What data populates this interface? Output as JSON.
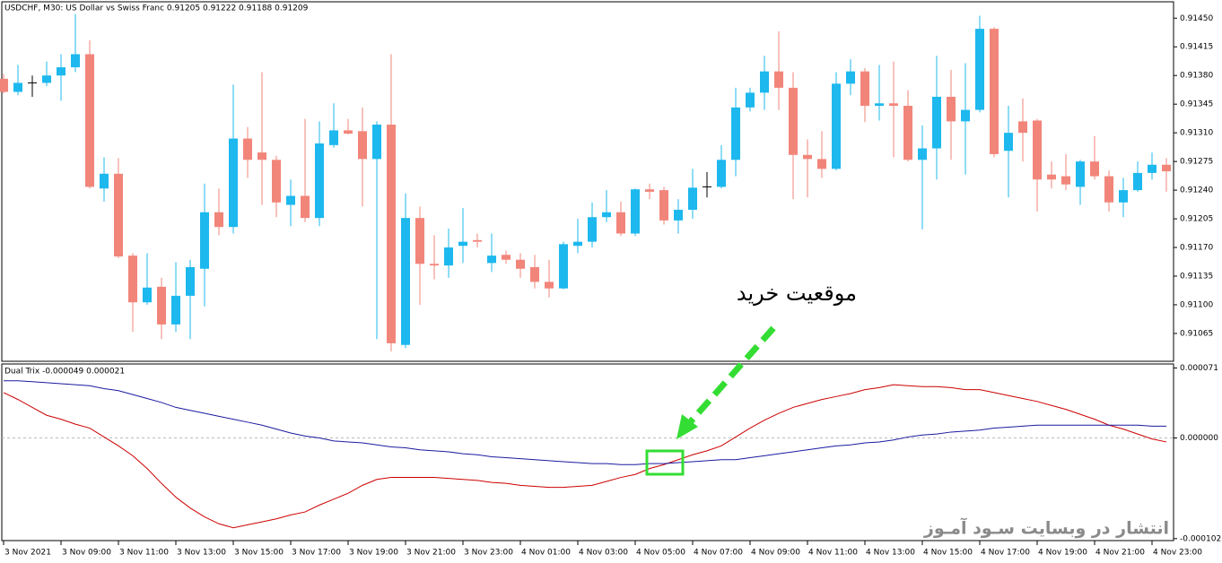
{
  "chart_data": [
    {
      "type": "candlestick",
      "title": "USDCHF, M30:  US Dollar vs Swiss Franc  0.91205 0.91222 0.91188 0.91209",
      "categories": [
        "3 Nov 2021",
        null,
        null,
        null,
        "3 Nov 09:00",
        null,
        null,
        null,
        "3 Nov 11:00",
        null,
        null,
        null,
        "3 Nov 13:00",
        null,
        null,
        null,
        "3 Nov 15:00",
        null,
        null,
        null,
        "3 Nov 17:00",
        null,
        null,
        null,
        "3 Nov 19:00",
        null,
        null,
        null,
        "3 Nov 21:00",
        null,
        null,
        null,
        "3 Nov 23:00",
        null,
        null,
        null,
        "4 Nov 01:00",
        null,
        null,
        null,
        "4 Nov 03:00",
        null,
        null,
        null,
        "4 Nov 05:00",
        null,
        null,
        null,
        "4 Nov 07:00",
        null,
        null,
        null,
        "4 Nov 09:00",
        null,
        null,
        null,
        "4 Nov 11:00",
        null,
        null,
        null,
        "4 Nov 13:00",
        null,
        null,
        null,
        "4 Nov 15:00",
        null,
        null,
        null,
        "4 Nov 17:00",
        null,
        null,
        null,
        "4 Nov 19:00",
        null,
        null,
        null,
        "4 Nov 21:00",
        null,
        null,
        null,
        "4 Nov 23:00",
        null
      ],
      "open": [
        0.91376,
        0.9136,
        0.91371,
        0.91371,
        0.9138,
        0.9139,
        0.91406,
        0.91242,
        0.9126,
        0.9116,
        0.91103,
        0.91122,
        0.91076,
        0.91111,
        0.91144,
        0.91213,
        0.91195,
        0.91303,
        0.91286,
        0.91277,
        0.91222,
        0.91233,
        0.91206,
        0.91295,
        0.91313,
        0.91312,
        0.91278,
        0.9132,
        0.91051,
        0.91206,
        0.9115,
        0.91148,
        0.91172,
        0.91179,
        0.91151,
        0.91161,
        0.91155,
        0.91146,
        0.91128,
        0.9112,
        0.91172,
        0.91177,
        0.91207,
        0.91213,
        0.91187,
        0.91241,
        0.9124,
        0.91203,
        0.91216,
        0.91244,
        0.91244,
        0.91277,
        0.91341,
        0.91359,
        0.91385,
        0.91365,
        0.91283,
        0.91278,
        0.91266,
        0.9137,
        0.91385,
        0.91343,
        0.91346,
        0.91343,
        0.91277,
        0.91291,
        0.91354,
        0.91324,
        0.91338,
        0.91437,
        0.91288,
        0.91324,
        0.91325,
        0.91259,
        0.91257,
        0.91244,
        0.91275,
        0.91257,
        0.91225,
        0.9124,
        0.91261,
        0.91271
      ],
      "high": [
        0.91382,
        0.91393,
        0.9138,
        0.91397,
        0.91406,
        0.91455,
        0.91423,
        0.9128,
        0.91279,
        0.91163,
        0.91163,
        0.91133,
        0.91152,
        0.91155,
        0.91248,
        0.91242,
        0.91369,
        0.91317,
        0.91384,
        0.91282,
        0.91253,
        0.91327,
        0.91324,
        0.91346,
        0.91327,
        0.91341,
        0.91324,
        0.91406,
        0.91236,
        0.9122,
        0.91185,
        0.91193,
        0.91218,
        0.91187,
        0.91187,
        0.91166,
        0.91163,
        0.91161,
        0.91155,
        0.91177,
        0.91205,
        0.91225,
        0.9124,
        0.91226,
        0.91242,
        0.91248,
        0.91244,
        0.91229,
        0.91266,
        0.91262,
        0.91295,
        0.91365,
        0.91365,
        0.91404,
        0.91434,
        0.91384,
        0.91302,
        0.91312,
        0.91384,
        0.914,
        0.91389,
        0.91393,
        0.91397,
        0.91362,
        0.91319,
        0.91404,
        0.91387,
        0.91395,
        0.91453,
        0.91439,
        0.91343,
        0.91352,
        0.91327,
        0.91275,
        0.91284,
        0.91277,
        0.91306,
        0.91264,
        0.91255,
        0.91275,
        0.91286,
        0.91279
      ],
      "low": [
        0.91358,
        0.91356,
        0.91354,
        0.91367,
        0.91349,
        0.91384,
        0.91242,
        0.91226,
        0.91157,
        0.91067,
        0.911,
        0.91058,
        0.91067,
        0.91058,
        0.91098,
        0.91185,
        0.91187,
        0.91255,
        0.91222,
        0.91207,
        0.91196,
        0.91201,
        0.91196,
        0.91292,
        0.91308,
        0.9122,
        0.91058,
        0.91043,
        0.91047,
        0.911,
        0.91131,
        0.91133,
        0.91151,
        0.9117,
        0.9114,
        0.9115,
        0.91133,
        0.9112,
        0.91109,
        0.91119,
        0.91163,
        0.9117,
        0.91201,
        0.91184,
        0.91184,
        0.91229,
        0.91198,
        0.91187,
        0.91205,
        0.91231,
        0.91242,
        0.91257,
        0.91336,
        0.91338,
        0.91338,
        0.91229,
        0.91231,
        0.91255,
        0.91264,
        0.91356,
        0.91323,
        0.91325,
        0.9128,
        0.91275,
        0.91192,
        0.91253,
        0.91277,
        0.91259,
        0.91335,
        0.9128,
        0.91231,
        0.91275,
        0.91214,
        0.91242,
        0.9124,
        0.91222,
        0.91253,
        0.91214,
        0.91207,
        0.91238,
        0.91253,
        0.91238
      ],
      "close": [
        0.9136,
        0.91371,
        0.91371,
        0.9138,
        0.9139,
        0.91406,
        0.91244,
        0.9126,
        0.91159,
        0.91103,
        0.91121,
        0.91076,
        0.91111,
        0.91146,
        0.91213,
        0.91195,
        0.91303,
        0.91277,
        0.91277,
        0.91225,
        0.91233,
        0.91206,
        0.91297,
        0.91313,
        0.91309,
        0.91278,
        0.9132,
        0.91053,
        0.91206,
        0.9115,
        0.91148,
        0.9117,
        0.91177,
        0.91177,
        0.9116,
        0.91155,
        0.91144,
        0.91128,
        0.9112,
        0.91174,
        0.91177,
        0.91207,
        0.91213,
        0.91187,
        0.91241,
        0.91238,
        0.91203,
        0.91216,
        0.91243,
        0.91244,
        0.91277,
        0.91341,
        0.91359,
        0.91385,
        0.91365,
        0.91283,
        0.91278,
        0.91266,
        0.9137,
        0.91385,
        0.91343,
        0.91346,
        0.91343,
        0.91277,
        0.91291,
        0.91354,
        0.91324,
        0.91338,
        0.91437,
        0.91284,
        0.9131,
        0.9131,
        0.91253,
        0.91253,
        0.91247,
        0.91275,
        0.91257,
        0.91225,
        0.9124,
        0.91261,
        0.91271,
        0.91263
      ],
      "up_color": "#1db8ee",
      "down_color": "#f2857a",
      "doji_color": "#000000",
      "ylim": [
        0.91031,
        0.9147
      ],
      "yticks": [
        {
          "value": 0.9145,
          "label": "0.91450"
        },
        {
          "value": 0.91415,
          "label": "0.91415"
        },
        {
          "value": 0.9138,
          "label": "0.91380"
        },
        {
          "value": 0.91345,
          "label": "0.91345"
        },
        {
          "value": 0.9131,
          "label": "0.91310"
        },
        {
          "value": 0.91275,
          "label": "0.91275"
        },
        {
          "value": 0.9124,
          "label": "0.91240"
        },
        {
          "value": 0.91205,
          "label": "0.91205"
        },
        {
          "value": 0.9117,
          "label": "0.91170"
        },
        {
          "value": 0.91135,
          "label": "0.91135"
        },
        {
          "value": 0.911,
          "label": "0.91100"
        },
        {
          "value": 0.91065,
          "label": "0.91065"
        }
      ],
      "annotations": [
        "موقعیت خرید"
      ]
    },
    {
      "type": "line",
      "title": "Dual Trix -0.000049 0.000021",
      "series": [
        {
          "color": "#cc0000",
          "values": [
            4.6e-05,
            3.9e-05,
            3.1e-05,
            2.3e-05,
            1.9e-05,
            1.4e-05,
            1e-05,
            1e-06,
            -8e-06,
            -1.8e-05,
            -3.1e-05,
            -4.6e-05,
            -6e-05,
            -7.1e-05,
            -8e-05,
            -8.7e-05,
            -9.1e-05,
            -8.8e-05,
            -8.5e-05,
            -8.2e-05,
            -7.8e-05,
            -7.5e-05,
            -6.8e-05,
            -6.2e-05,
            -5.6e-05,
            -4.8e-05,
            -4.2e-05,
            -4e-05,
            -4e-05,
            -4e-05,
            -4e-05,
            -4.1e-05,
            -4.2e-05,
            -4.3e-05,
            -4.5e-05,
            -4.6e-05,
            -4.8e-05,
            -4.9e-05,
            -5e-05,
            -5e-05,
            -4.9e-05,
            -4.8e-05,
            -4.4e-05,
            -4e-05,
            -3.7e-05,
            -3.1e-05,
            -2.7e-05,
            -2.2e-05,
            -1.7e-05,
            -1.3e-05,
            -8e-06,
            1e-06,
            1e-05,
            1.8e-05,
            2.5e-05,
            3.1e-05,
            3.5e-05,
            3.9e-05,
            4.2e-05,
            4.5e-05,
            4.9e-05,
            5.1e-05,
            5.4e-05,
            5.3e-05,
            5.2e-05,
            5.2e-05,
            5.1e-05,
            4.9e-05,
            4.9e-05,
            4.6e-05,
            4.3e-05,
            4e-05,
            3.7e-05,
            3.3e-05,
            2.9e-05,
            2.4e-05,
            1.9e-05,
            1.3e-05,
            9e-06,
            4e-06,
            -1e-06,
            -4e-06
          ]
        },
        {
          "color": "#1a1aa0",
          "values": [
            5.8e-05,
            5.8e-05,
            5.7e-05,
            5.6e-05,
            5.5e-05,
            5.4e-05,
            5.3e-05,
            5e-05,
            4.8e-05,
            4.4e-05,
            4e-05,
            3.6e-05,
            3.1e-05,
            2.8e-05,
            2.5e-05,
            2.2e-05,
            1.9e-05,
            1.6e-05,
            1.3e-05,
            9e-06,
            5e-06,
            2e-06,
            0,
            -3e-06,
            -4e-06,
            -5e-06,
            -7e-06,
            -9e-06,
            -1e-05,
            -1.2e-05,
            -1.3e-05,
            -1.4e-05,
            -1.6e-05,
            -1.7e-05,
            -1.9e-05,
            -2e-05,
            -2.1e-05,
            -2.2e-05,
            -2.3e-05,
            -2.4e-05,
            -2.5e-05,
            -2.6e-05,
            -2.6e-05,
            -2.7e-05,
            -2.7e-05,
            -2.6e-05,
            -2.6e-05,
            -2.5e-05,
            -2.4e-05,
            -2.3e-05,
            -2.2e-05,
            -2.2e-05,
            -2e-05,
            -1.8e-05,
            -1.6e-05,
            -1.4e-05,
            -1.2e-05,
            -1e-05,
            -8e-06,
            -7e-06,
            -5e-06,
            -4e-06,
            -2e-06,
            1e-06,
            3e-06,
            4e-06,
            6e-06,
            7e-06,
            8e-06,
            1e-05,
            1.1e-05,
            1.2e-05,
            1.3e-05,
            1.3e-05,
            1.3e-05,
            1.3e-05,
            1.3e-05,
            1.3e-05,
            1.3e-05,
            1.3e-05,
            1.2e-05,
            1.2e-05
          ]
        }
      ],
      "ylim": [
        -0.000104,
        7.5e-05
      ],
      "yticks": [
        {
          "value": 7.1e-05,
          "label": "0.000071"
        },
        {
          "value": 0,
          "label": "0.000000"
        },
        {
          "value": -0.000102,
          "label": "-0.000102"
        }
      ],
      "annotations": [
        "انتشار در وبسایت  سـود آمـوز"
      ]
    }
  ]
}
